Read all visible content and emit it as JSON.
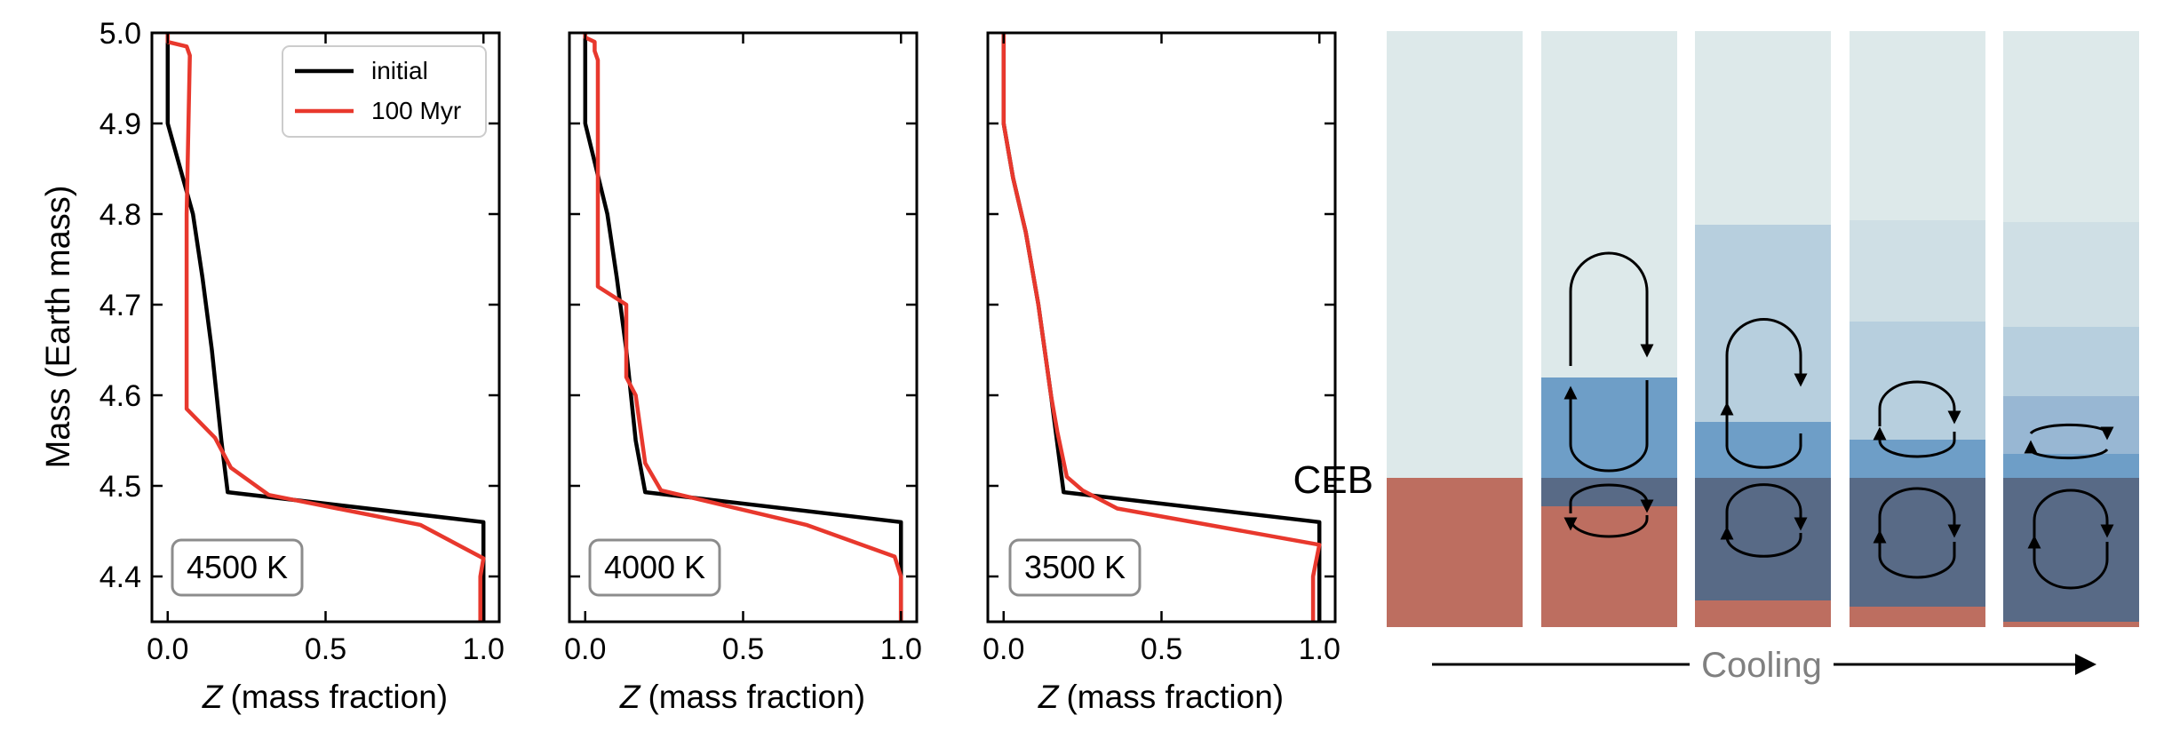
{
  "colors": {
    "initial": "#000000",
    "after": "#e8382d",
    "axis": "#000000",
    "badge_border": "#8c8c8c",
    "envelope": "#dde9ea",
    "envelope_light": "#cfdfe5",
    "mix_mid": "#b7cfde",
    "mix_blue": "#6e9ec7",
    "deep_blue": "#586a86",
    "rock": "#bd6e60",
    "cooling_text": "#808080"
  },
  "chart_data": [
    {
      "type": "line",
      "panel": "left",
      "annotation": "4500 K",
      "xlabel_italic": "Z",
      "xlabel": "(mass fraction)",
      "ylabel": "Mass (Earth mass)",
      "xlim": [
        -0.05,
        1.05
      ],
      "ylim": [
        4.35,
        5.0
      ],
      "xticks": [
        "0.0",
        "0.5",
        "1.0"
      ],
      "yticks": [
        "4.4",
        "4.5",
        "4.6",
        "4.7",
        "4.8",
        "4.9",
        "5.0"
      ],
      "legend": {
        "position": "top-right",
        "entries": [
          "initial",
          "100 Myr"
        ]
      },
      "series": [
        {
          "name": "initial",
          "x": [
            1.0,
            1.0,
            0.19,
            0.17,
            0.14,
            0.11,
            0.08,
            0.0,
            0.0
          ],
          "y": [
            4.35,
            4.46,
            4.493,
            4.55,
            4.65,
            4.73,
            4.8,
            4.9,
            5.0
          ]
        },
        {
          "name": "100 Myr",
          "x": [
            0.99,
            0.99,
            1.0,
            0.8,
            0.32,
            0.2,
            0.15,
            0.06,
            0.06,
            0.07,
            0.06,
            0.0,
            0.0
          ],
          "y": [
            4.35,
            4.4,
            4.42,
            4.457,
            4.49,
            4.52,
            4.553,
            4.585,
            4.8,
            4.975,
            4.985,
            4.99,
            5.0
          ]
        }
      ]
    },
    {
      "type": "line",
      "panel": "middle",
      "annotation": "4000 K",
      "xlabel_italic": "Z",
      "xlabel": "(mass fraction)",
      "xlim": [
        -0.05,
        1.05
      ],
      "ylim": [
        4.35,
        5.0
      ],
      "xticks": [
        "0.0",
        "0.5",
        "1.0"
      ],
      "series": [
        {
          "name": "initial",
          "x": [
            1.0,
            1.0,
            0.19,
            0.16,
            0.13,
            0.1,
            0.07,
            0.0,
            0.0
          ],
          "y": [
            4.35,
            4.46,
            4.493,
            4.55,
            4.65,
            4.73,
            4.8,
            4.9,
            5.0
          ]
        },
        {
          "name": "100 Myr",
          "x": [
            1.0,
            1.0,
            0.98,
            0.7,
            0.24,
            0.19,
            0.16,
            0.13,
            0.13,
            0.04,
            0.04,
            0.03,
            0.03,
            0.0,
            0.0
          ],
          "y": [
            4.35,
            4.4,
            4.422,
            4.457,
            4.495,
            4.525,
            4.6,
            4.62,
            4.7,
            4.72,
            4.97,
            4.98,
            4.99,
            4.995,
            5.0
          ]
        }
      ]
    },
    {
      "type": "line",
      "panel": "right",
      "annotation": "3500 K",
      "xlabel_italic": "Z",
      "xlabel": "(mass fraction)",
      "xlim": [
        -0.05,
        1.05
      ],
      "ylim": [
        4.35,
        5.0
      ],
      "xticks": [
        "0.0",
        "0.5",
        "1.0"
      ],
      "series": [
        {
          "name": "initial",
          "x": [
            1.0,
            1.0,
            0.19,
            0.15,
            0.11,
            0.07,
            0.03,
            0.0,
            0.0
          ],
          "y": [
            4.35,
            4.46,
            4.493,
            4.6,
            4.7,
            4.78,
            4.84,
            4.9,
            5.0
          ]
        },
        {
          "name": "100 Myr",
          "x": [
            0.98,
            0.98,
            1.0,
            0.36,
            0.25,
            0.2,
            0.17,
            0.15,
            0.11,
            0.07,
            0.03,
            0.0,
            0.0
          ],
          "y": [
            4.35,
            4.4,
            4.435,
            4.475,
            4.495,
            4.51,
            4.56,
            4.6,
            4.7,
            4.78,
            4.84,
            4.9,
            5.0
          ]
        }
      ]
    }
  ],
  "schematic": {
    "ceb_label": "CEB",
    "cooling_label": "Cooling",
    "columns": 5
  }
}
